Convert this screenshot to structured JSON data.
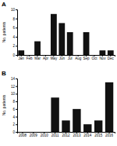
{
  "chart_data": [
    {
      "type": "bar",
      "title": "A",
      "ylabel": "No. patients",
      "categories": [
        "Jan",
        "Feb",
        "Mar",
        "Apr",
        "May",
        "Jun",
        "Jul",
        "Aug",
        "Sep",
        "Oct",
        "Nov",
        "Dec"
      ],
      "values": [
        1,
        0,
        3,
        0,
        9,
        7,
        5,
        0,
        5,
        0,
        1,
        1
      ],
      "color": "#111111",
      "ylim": [
        0,
        10
      ],
      "yticks": [
        0,
        2,
        4,
        6,
        8,
        10
      ]
    },
    {
      "type": "bar",
      "title": "B",
      "ylabel": "No. patients",
      "categories": [
        "2008",
        "2009",
        "2010",
        "2011",
        "2012",
        "2013",
        "2014",
        "2015",
        "2016"
      ],
      "values": [
        0,
        0,
        0,
        9,
        3,
        6,
        2,
        3,
        13
      ],
      "color": "#111111",
      "ylim": [
        0,
        14
      ],
      "yticks": [
        0,
        2,
        4,
        6,
        8,
        10,
        12,
        14
      ]
    }
  ]
}
